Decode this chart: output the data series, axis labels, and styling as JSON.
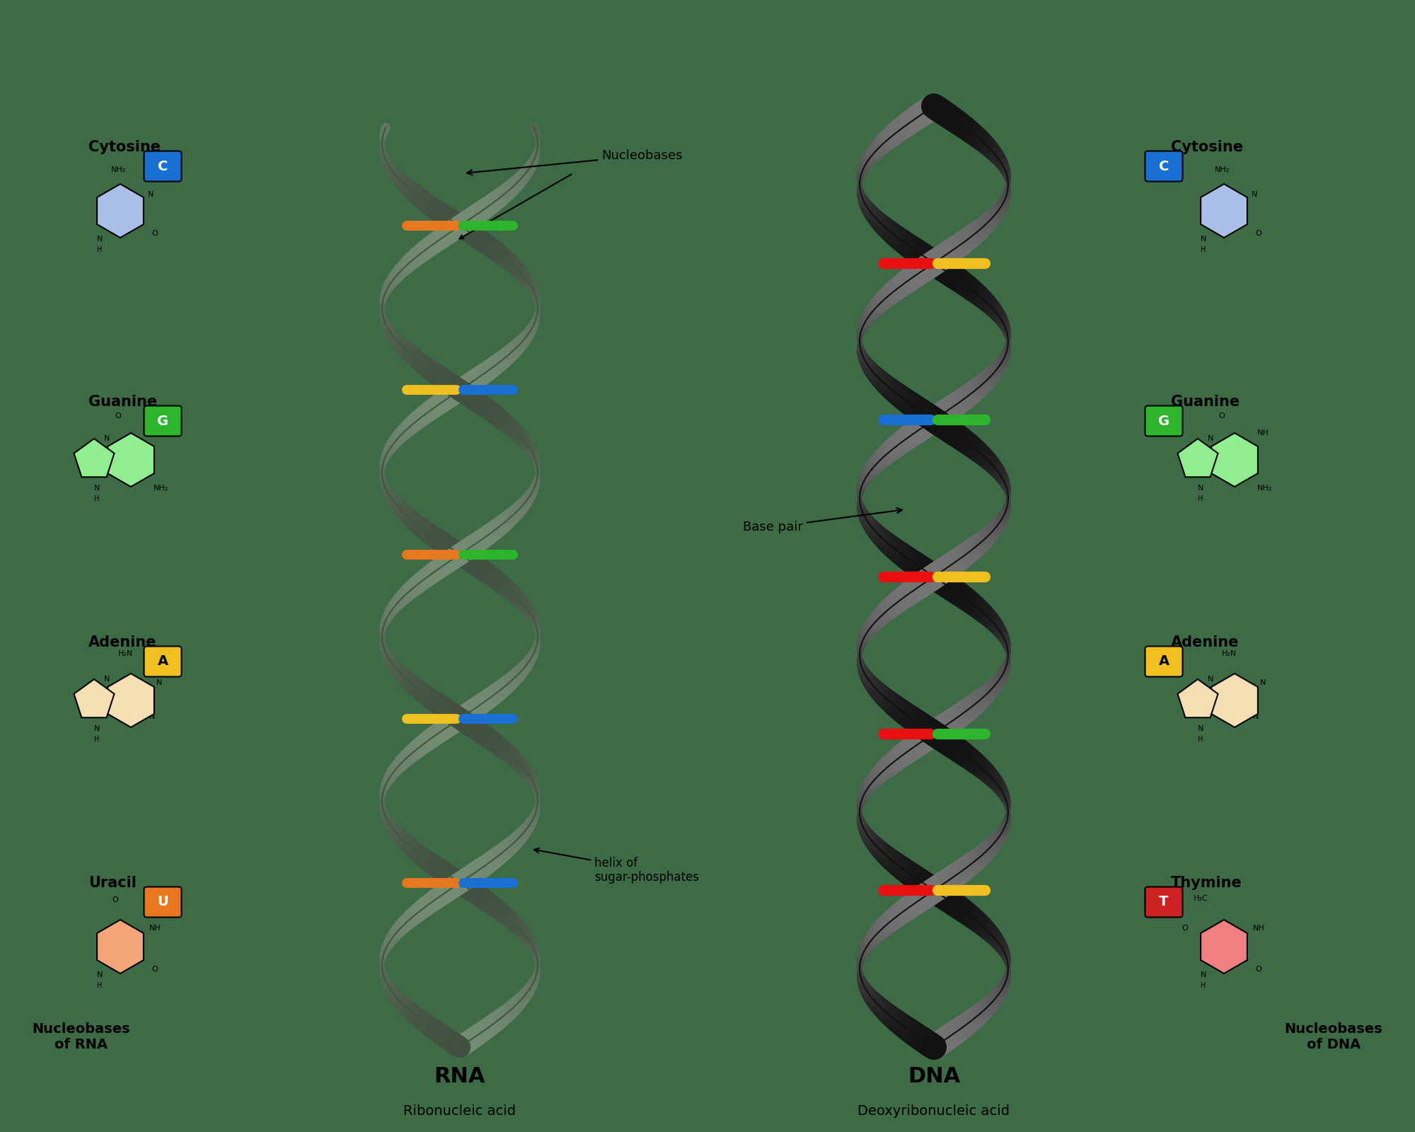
{
  "background_color": "#3d6b45",
  "title_rna": "RNA",
  "subtitle_rna": "Ribonucleic acid",
  "title_dna": "DNA",
  "subtitle_dna": "Deoxyribonucleic acid",
  "molecule_colors_rna": [
    "#aabfe8",
    "#90ee90",
    "#f5deb3",
    "#f4a67a"
  ],
  "molecule_colors_dna": [
    "#aabfe8",
    "#90ee90",
    "#f5deb3",
    "#f08080"
  ],
  "label_box_colors_rna": [
    "#1a6fd4",
    "#2db52d",
    "#f0c020",
    "#e87820"
  ],
  "label_box_colors_dna": [
    "#1a6fd4",
    "#2db52d",
    "#f0c020",
    "#cc2222"
  ],
  "label_text_rna": [
    "C",
    "G",
    "A",
    "U"
  ],
  "label_text_dna": [
    "C",
    "G",
    "A",
    "T"
  ],
  "label_text_color_rna": [
    "white",
    "white",
    "black",
    "white"
  ],
  "label_text_color_dna": [
    "white",
    "white",
    "black",
    "white"
  ],
  "molecule_names_rna": [
    "Cytosine",
    "Guanine",
    "Adenine",
    "Uracil"
  ],
  "molecule_names_dna": [
    "Cytosine",
    "Guanine",
    "Adenine",
    "Thymine"
  ],
  "footer_rna": "Nucleobases\nof RNA",
  "footer_dna": "Nucleobases\nof DNA",
  "annotation_nucleobases": "Nucleobases",
  "annotation_basepair": "Base pair",
  "annotation_helix": "helix of\nsugar-phosphates"
}
